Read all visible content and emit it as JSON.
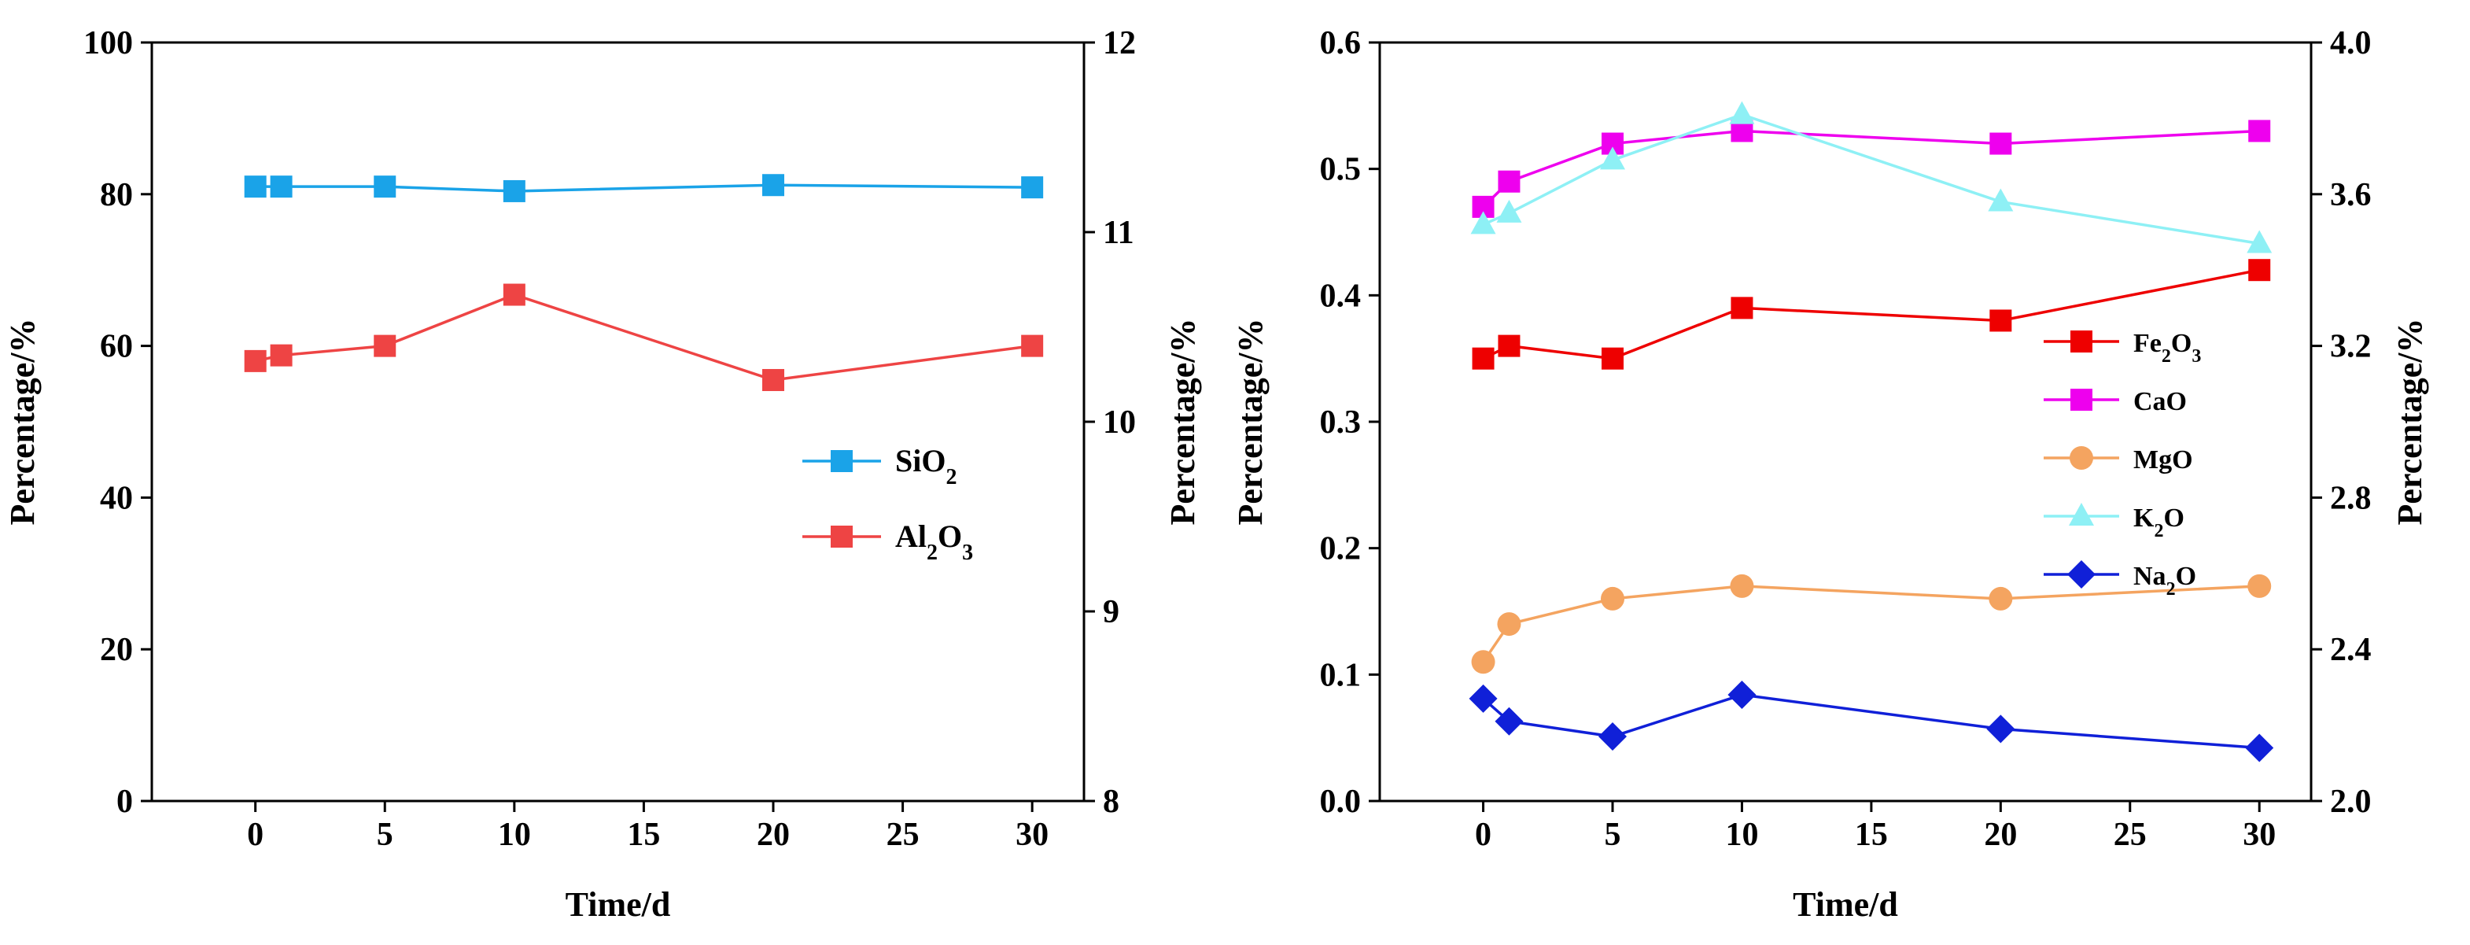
{
  "chart_data": [
    {
      "type": "line",
      "xlabel": "Time/d",
      "ylabel_left": "Percentage/%",
      "ylabel_right": "Percentage/%",
      "xlim": [
        -4,
        32
      ],
      "x_ticks": [
        "0",
        "5",
        "10",
        "15",
        "20",
        "25",
        "30"
      ],
      "ylim_left": [
        0,
        100
      ],
      "y_ticks_left": [
        "0",
        "20",
        "40",
        "60",
        "80",
        "100"
      ],
      "ylim_right": [
        8,
        12
      ],
      "y_ticks_right": [
        "8",
        "9",
        "10",
        "11",
        "12"
      ],
      "legend_position": "center-right",
      "series": [
        {
          "name": "SiO2",
          "axis": "left",
          "marker": "square",
          "color": "#1aa3e8",
          "x": [
            0,
            1,
            5,
            10,
            20,
            30
          ],
          "y": [
            81.0,
            81.0,
            81.0,
            80.4,
            81.2,
            80.9
          ]
        },
        {
          "name": "Al2O3",
          "axis": "right",
          "marker": "square",
          "color": "#ee4444",
          "x": [
            0,
            1,
            5,
            10,
            20,
            30
          ],
          "y": [
            10.32,
            10.35,
            10.4,
            10.67,
            10.22,
            10.4
          ]
        }
      ]
    },
    {
      "type": "line",
      "xlabel": "Time/d",
      "ylabel_left": "Percentage/%",
      "ylabel_right": "Percentage/%",
      "xlim": [
        -4,
        32
      ],
      "x_ticks": [
        "0",
        "5",
        "10",
        "15",
        "20",
        "25",
        "30"
      ],
      "ylim_left": [
        0,
        0.6
      ],
      "y_ticks_left": [
        "0.0",
        "0.1",
        "0.2",
        "0.3",
        "0.4",
        "0.5",
        "0.6"
      ],
      "ylim_right": [
        2.0,
        4.0
      ],
      "y_ticks_right": [
        "2.0",
        "2.4",
        "2.8",
        "3.2",
        "3.6",
        "4.0"
      ],
      "legend_position": "center-right",
      "series": [
        {
          "name": "Fe2O3",
          "axis": "left",
          "marker": "square",
          "color": "#ee0000",
          "x": [
            0,
            1,
            5,
            10,
            20,
            30
          ],
          "y": [
            0.35,
            0.36,
            0.35,
            0.39,
            0.38,
            0.42
          ]
        },
        {
          "name": "CaO",
          "axis": "left",
          "marker": "square",
          "color": "#ee00ee",
          "x": [
            0,
            1,
            5,
            10,
            20,
            30
          ],
          "y": [
            0.47,
            0.49,
            0.52,
            0.53,
            0.52,
            0.53
          ]
        },
        {
          "name": "MgO",
          "axis": "left",
          "marker": "circle",
          "color": "#f4a460",
          "x": [
            0,
            1,
            5,
            10,
            20,
            30
          ],
          "y": [
            0.11,
            0.14,
            0.16,
            0.17,
            0.16,
            0.17
          ]
        },
        {
          "name": "K2O",
          "axis": "right",
          "marker": "triangle",
          "color": "#8ef0f5",
          "x": [
            0,
            1,
            5,
            10,
            20,
            30
          ],
          "y": [
            3.52,
            3.55,
            3.69,
            3.81,
            3.58,
            3.47
          ]
        },
        {
          "name": "Na2O",
          "axis": "right",
          "marker": "diamond",
          "color": "#1020d8",
          "x": [
            0,
            1,
            5,
            10,
            20,
            30
          ],
          "y": [
            2.27,
            2.21,
            2.17,
            2.28,
            2.19,
            2.14
          ]
        }
      ]
    }
  ]
}
